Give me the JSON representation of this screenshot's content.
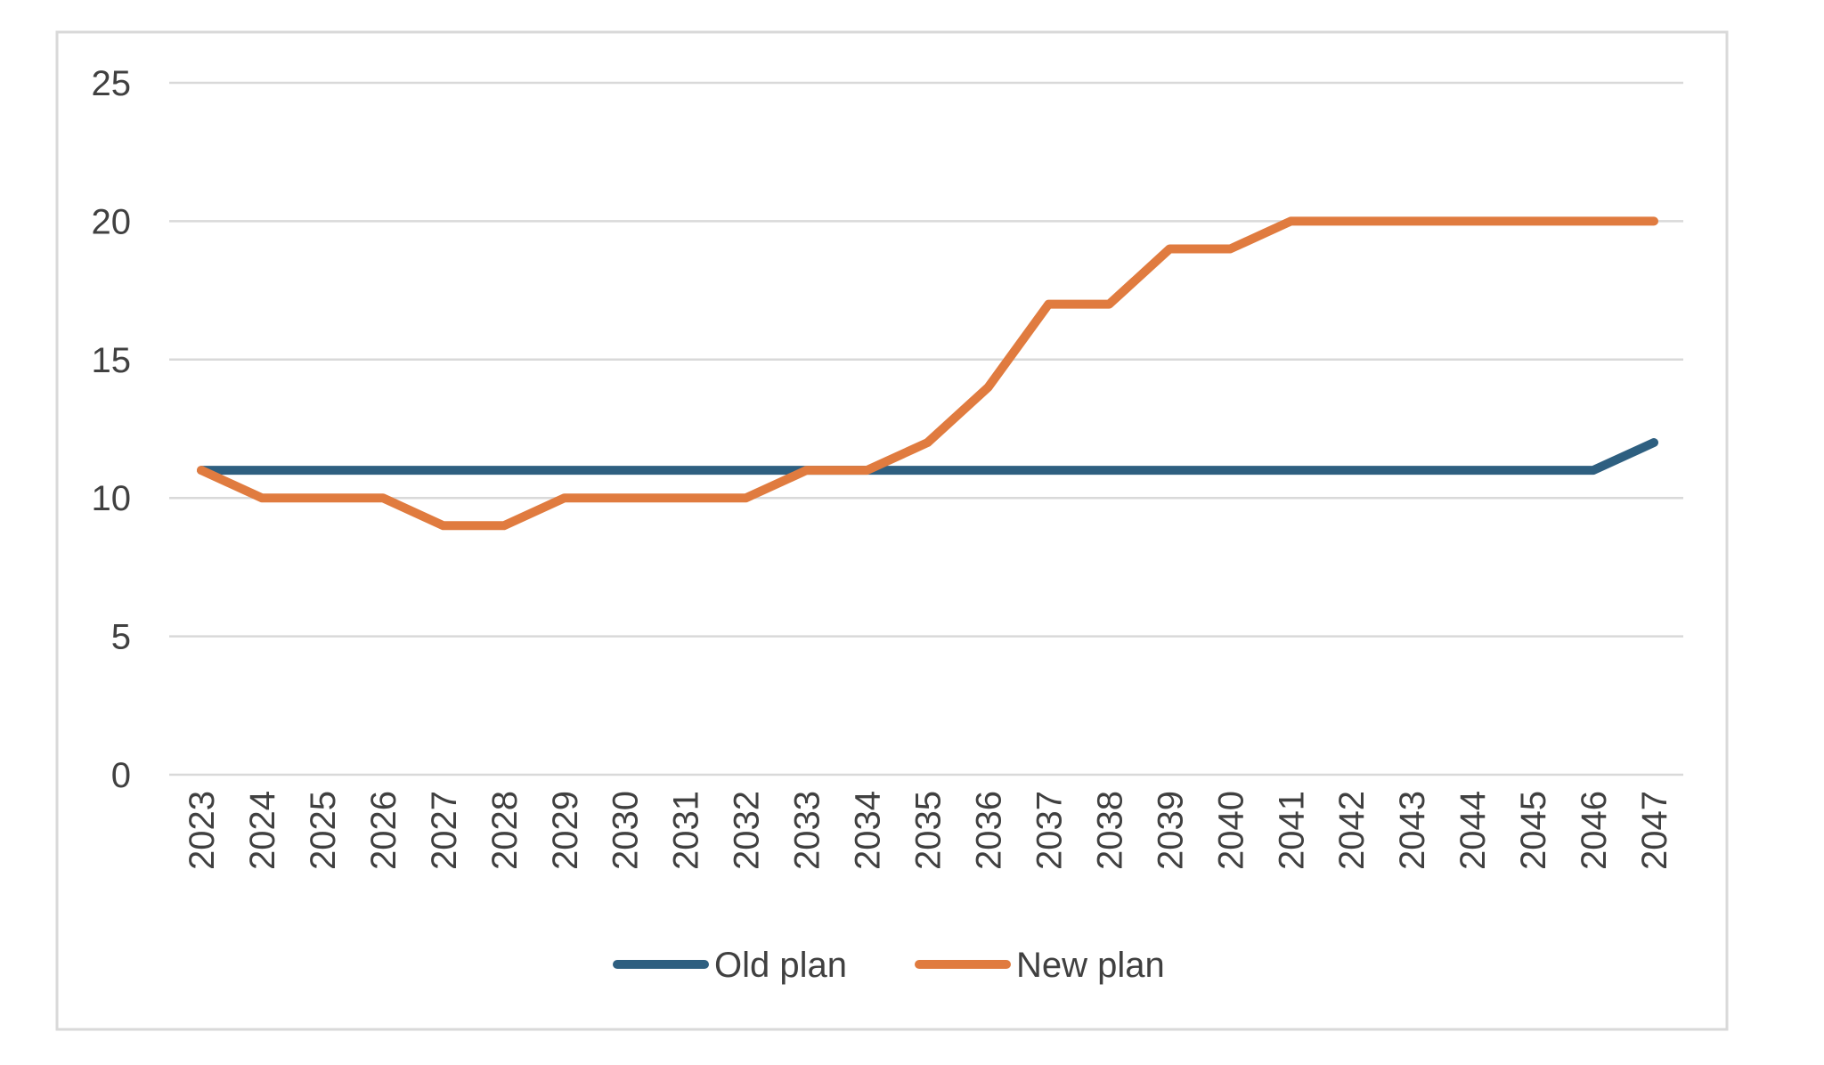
{
  "chart_data": {
    "type": "line",
    "title": "",
    "xlabel": "",
    "ylabel": "",
    "categories": [
      "2023",
      "2024",
      "2025",
      "2026",
      "2027",
      "2028",
      "2029",
      "2030",
      "2031",
      "2032",
      "2033",
      "2034",
      "2035",
      "2036",
      "2037",
      "2038",
      "2039",
      "2040",
      "2041",
      "2042",
      "2043",
      "2044",
      "2045",
      "2046",
      "2047"
    ],
    "ylim": [
      0,
      25
    ],
    "yticks": [
      "0",
      "5",
      "10",
      "15",
      "20",
      "25"
    ],
    "grid": true,
    "legend_position": "bottom",
    "series": [
      {
        "name": "Old plan",
        "color": "#2E5F80",
        "values": [
          11,
          11,
          11,
          11,
          11,
          11,
          11,
          11,
          11,
          11,
          11,
          11,
          11,
          11,
          11,
          11,
          11,
          11,
          11,
          11,
          11,
          11,
          11,
          11,
          12
        ]
      },
      {
        "name": "New plan",
        "color": "#E07B3F",
        "values": [
          11,
          10,
          10,
          10,
          9,
          9,
          10,
          10,
          10,
          10,
          11,
          11,
          12,
          14,
          17,
          17,
          19,
          19,
          20,
          20,
          20,
          20,
          20,
          20,
          20
        ]
      }
    ]
  }
}
